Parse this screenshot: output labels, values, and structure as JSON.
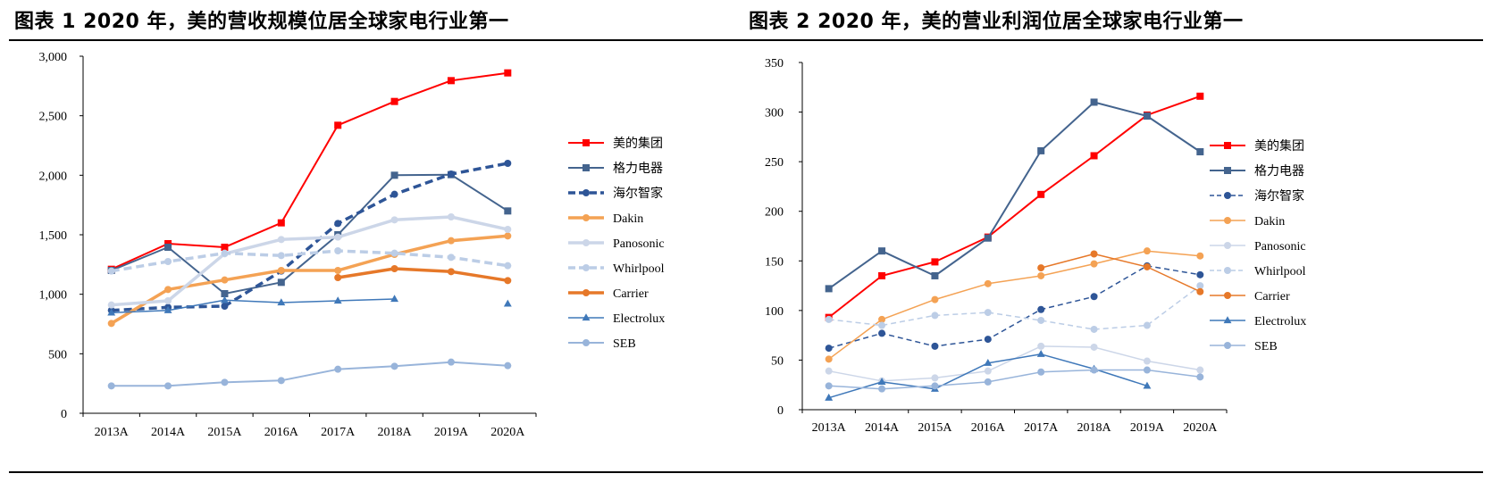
{
  "chart_data": [
    {
      "type": "line",
      "title": "图表 1 2020 年，美的营收规模位居全球家电行业第一",
      "categories": [
        "2013A",
        "2014A",
        "2015A",
        "2016A",
        "2017A",
        "2018A",
        "2019A",
        "2020A"
      ],
      "ylim": [
        0,
        3000
      ],
      "yticks": [
        "0",
        "500",
        "1,000",
        "1,500",
        "2,000",
        "2,500",
        "3,000"
      ],
      "ytick_values": [
        0,
        500,
        1000,
        1500,
        2000,
        2500,
        3000
      ],
      "grid": false,
      "legend": "right",
      "series": [
        {
          "name": "美的集团",
          "color": "#ff0000",
          "dash": "solid",
          "width": 2,
          "marker": "square",
          "values": [
            1210,
            1425,
            1395,
            1600,
            2420,
            2620,
            2795,
            2860
          ]
        },
        {
          "name": "格力电器",
          "color": "#44648e",
          "dash": "solid",
          "width": 2,
          "marker": "square",
          "values": [
            1200,
            1395,
            1005,
            1100,
            1500,
            2000,
            2005,
            1700
          ]
        },
        {
          "name": "海尔智家",
          "color": "#2e5597",
          "dash": "dashed",
          "width": 3.5,
          "marker": "circle",
          "values": [
            865,
            890,
            900,
            1195,
            1595,
            1840,
            2010,
            2100
          ]
        },
        {
          "name": "Dakin",
          "color": "#f4a254",
          "dash": "solid",
          "width": 3.5,
          "marker": "circle",
          "values": [
            755,
            1040,
            1120,
            1200,
            1200,
            1335,
            1450,
            1490
          ]
        },
        {
          "name": "Panosonic",
          "color": "#ccd6e8",
          "dash": "solid",
          "width": 3.5,
          "marker": "circle",
          "values": [
            910,
            945,
            1340,
            1460,
            1480,
            1625,
            1650,
            1545
          ]
        },
        {
          "name": "Whirlpool",
          "color": "#bccde6",
          "dash": "dashed",
          "width": 3.5,
          "marker": "circle",
          "values": [
            1195,
            1275,
            1345,
            1325,
            1365,
            1345,
            1310,
            1240
          ]
        },
        {
          "name": "Carrier",
          "color": "#e67829",
          "dash": "solid",
          "width": 3.5,
          "marker": "circle",
          "values": [
            null,
            null,
            null,
            null,
            1140,
            1215,
            1190,
            1115
          ]
        },
        {
          "name": "Electrolux",
          "color": "#3f78b9",
          "dash": "solid",
          "width": 1.5,
          "marker": "triangle",
          "values": [
            845,
            865,
            950,
            930,
            945,
            960,
            null,
            920
          ]
        },
        {
          "name": "SEB",
          "color": "#98b4da",
          "dash": "solid",
          "width": 2,
          "marker": "circle",
          "values": [
            230,
            230,
            260,
            275,
            370,
            395,
            430,
            400
          ]
        }
      ]
    },
    {
      "type": "line",
      "title": "图表 2 2020 年，美的营业利润位居全球家电行业第一",
      "categories": [
        "2013A",
        "2014A",
        "2015A",
        "2016A",
        "2017A",
        "2018A",
        "2019A",
        "2020A"
      ],
      "ylim": [
        0,
        350
      ],
      "yticks": [
        "0",
        "50",
        "100",
        "150",
        "200",
        "250",
        "300",
        "350"
      ],
      "ytick_values": [
        0,
        50,
        100,
        150,
        200,
        250,
        300,
        350
      ],
      "grid": false,
      "legend": "right",
      "series": [
        {
          "name": "美的集团",
          "color": "#ff0000",
          "dash": "solid",
          "width": 2,
          "marker": "square",
          "values": [
            93,
            135,
            149,
            174,
            217,
            256,
            297,
            316
          ]
        },
        {
          "name": "格力电器",
          "color": "#44648e",
          "dash": "solid",
          "width": 2,
          "marker": "square",
          "values": [
            122,
            160,
            135,
            173,
            261,
            310,
            296,
            260
          ]
        },
        {
          "name": "海尔智家",
          "color": "#2e5597",
          "dash": "dashed",
          "width": 1.5,
          "marker": "circle",
          "values": [
            62,
            77,
            64,
            71,
            101,
            114,
            145,
            136
          ]
        },
        {
          "name": "Dakin",
          "color": "#f4a254",
          "dash": "solid",
          "width": 1.5,
          "marker": "circle",
          "values": [
            51,
            91,
            111,
            127,
            135,
            147,
            160,
            155
          ]
        },
        {
          "name": "Panosonic",
          "color": "#ccd6e8",
          "dash": "solid",
          "width": 1.5,
          "marker": "circle",
          "values": [
            39,
            29,
            32,
            39,
            64,
            63,
            49,
            40
          ]
        },
        {
          "name": "Whirlpool",
          "color": "#bccde6",
          "dash": "dashed",
          "width": 1.5,
          "marker": "circle",
          "values": [
            91,
            85,
            95,
            98,
            90,
            81,
            85,
            125
          ]
        },
        {
          "name": "Carrier",
          "color": "#e67829",
          "dash": "solid",
          "width": 1.5,
          "marker": "circle",
          "values": [
            null,
            null,
            null,
            null,
            143,
            157,
            144,
            119
          ]
        },
        {
          "name": "Electrolux",
          "color": "#3f78b9",
          "dash": "solid",
          "width": 1.5,
          "marker": "triangle",
          "values": [
            12,
            28,
            21,
            47,
            56,
            41,
            24,
            null
          ]
        },
        {
          "name": "SEB",
          "color": "#98b4da",
          "dash": "solid",
          "width": 1.5,
          "marker": "circle",
          "values": [
            24,
            21,
            24,
            28,
            38,
            40,
            40,
            33
          ]
        }
      ]
    }
  ]
}
